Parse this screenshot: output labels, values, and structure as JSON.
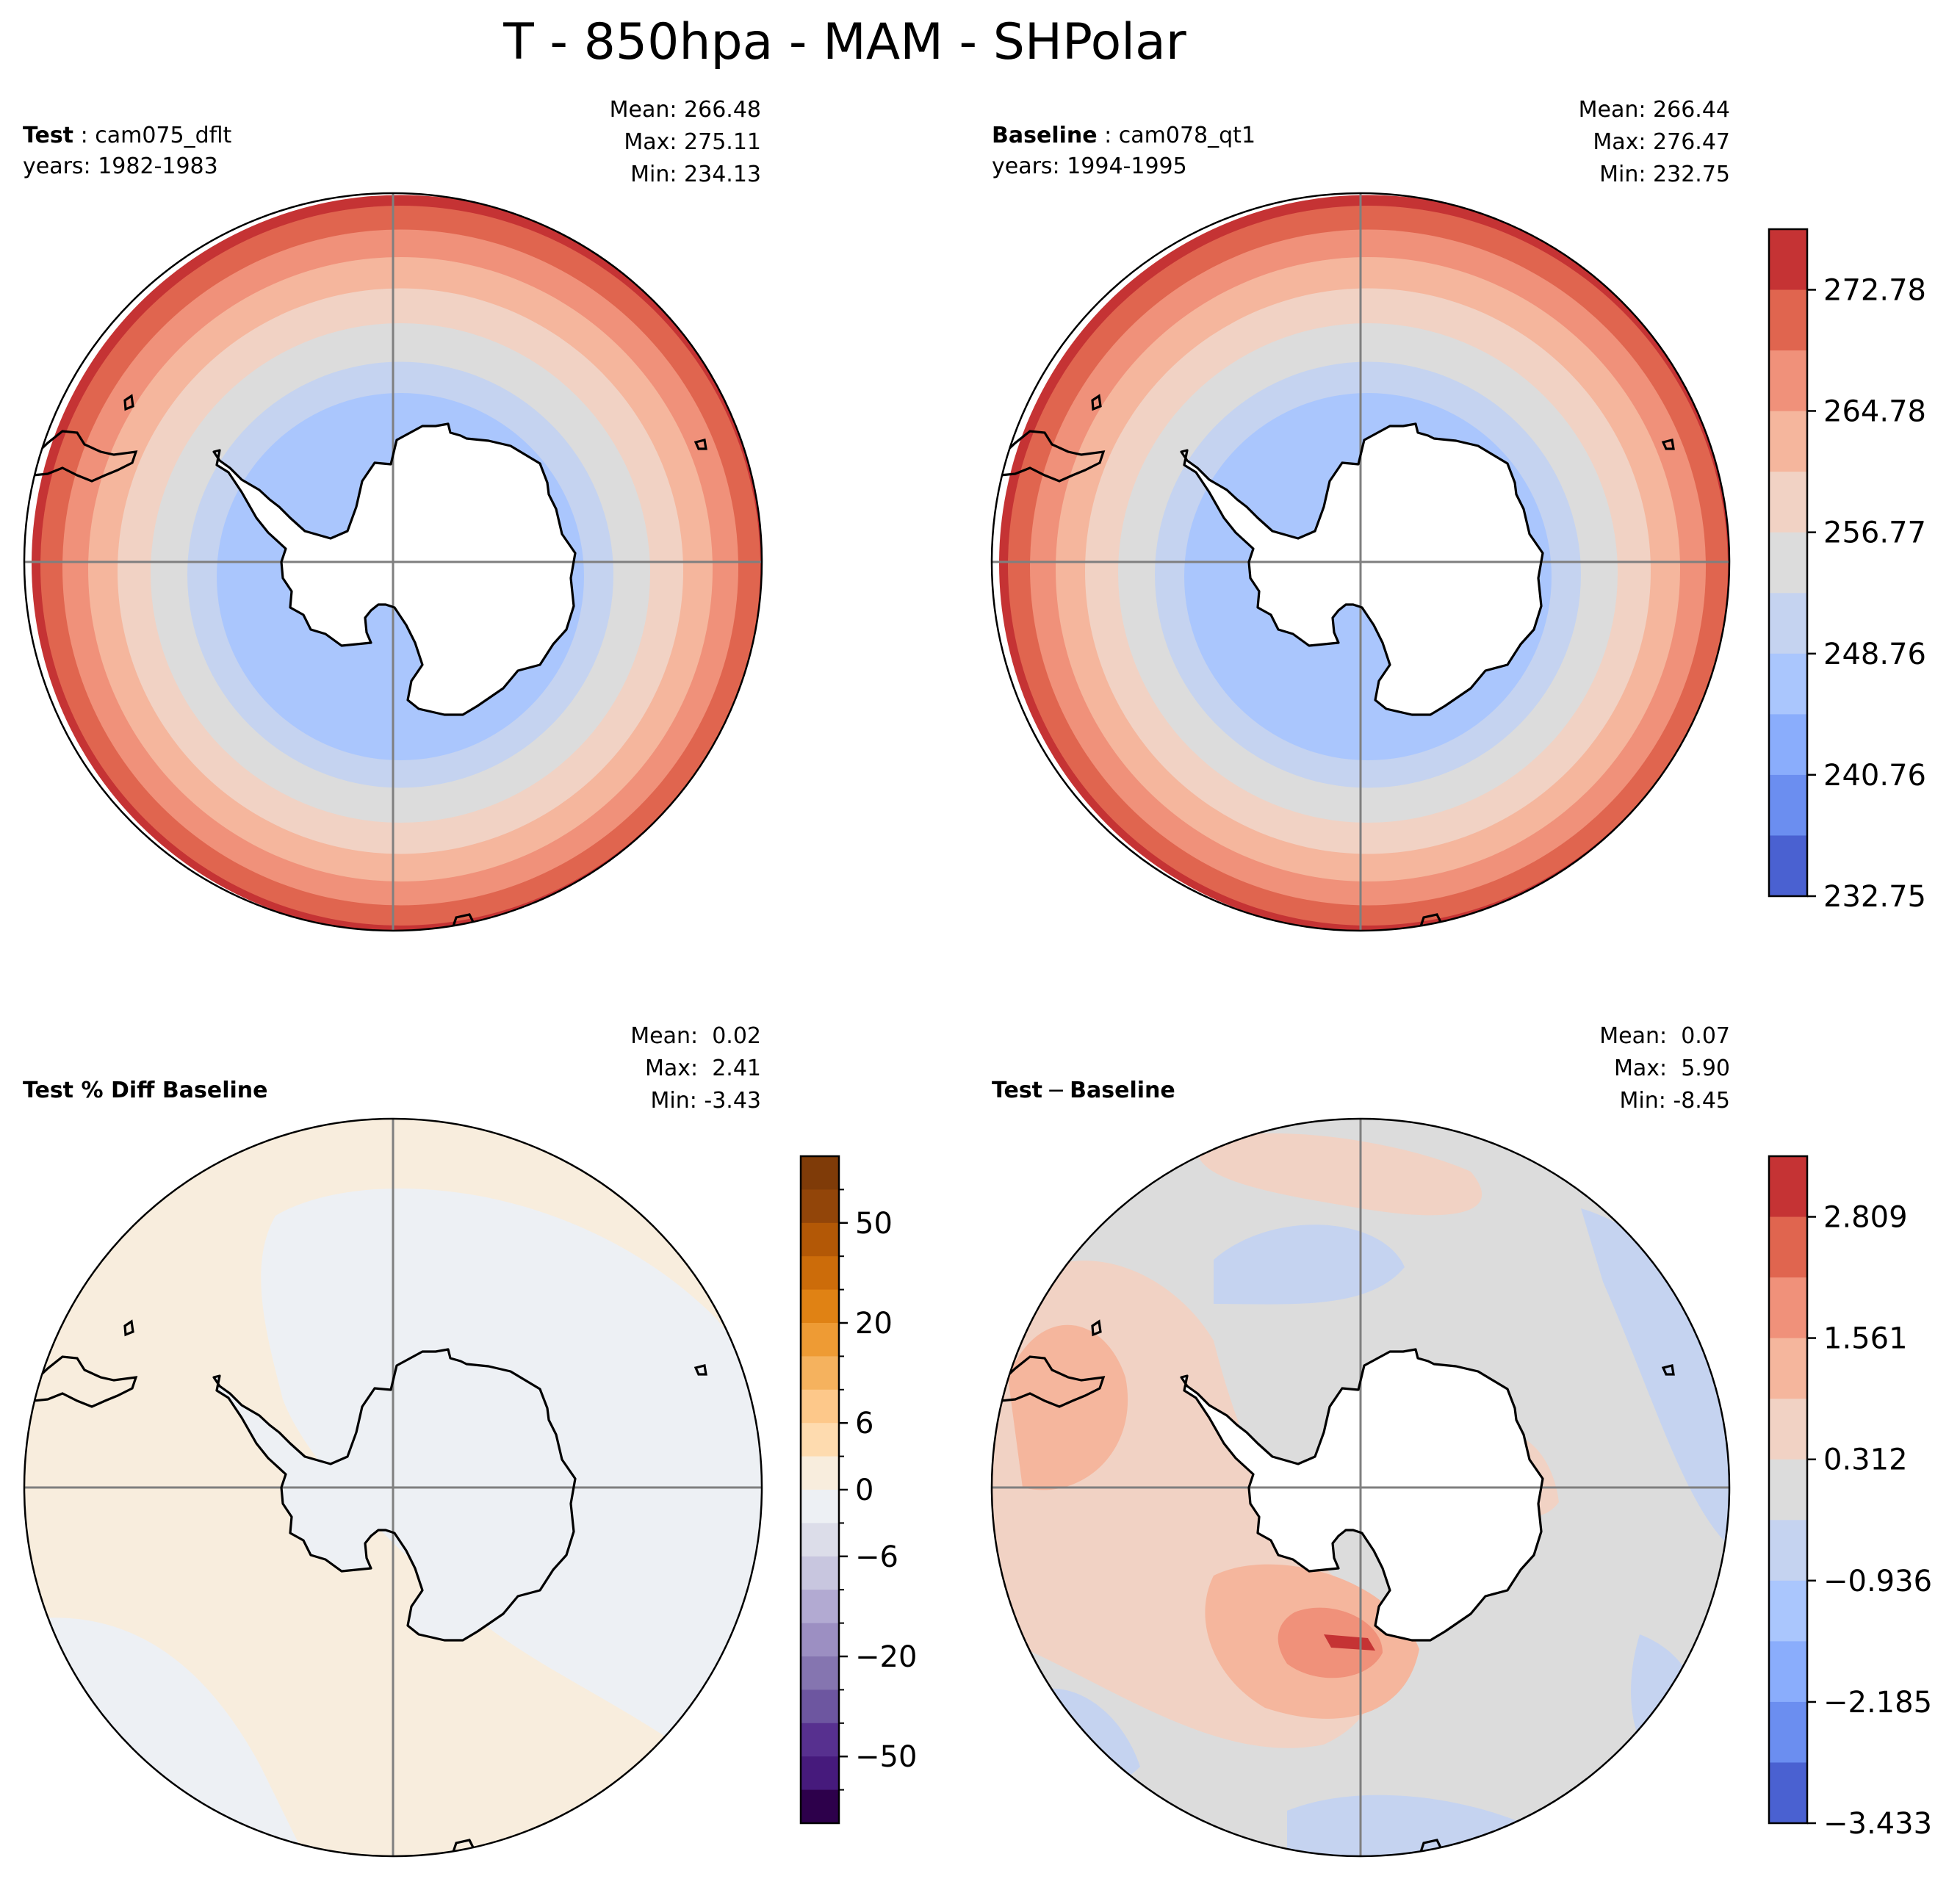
{
  "figure_title": "T - 850hpa - MAM - SHPolar",
  "panels": {
    "test": {
      "case_label": "Test",
      "case_name": "cam075_dflt",
      "years": "years: 1982-1983",
      "mean": "Mean: 266.48",
      "max": "Max: 275.11",
      "min": "Min: 234.13"
    },
    "baseline": {
      "case_label": "Baseline",
      "case_name": "cam078_qt1",
      "years": "years: 1994-1995",
      "mean": "Mean: 266.44",
      "max": "Max: 276.47",
      "min": "Min: 232.75"
    },
    "pct_diff": {
      "title": "Test % Diff Baseline",
      "mean": "Mean:  0.02",
      "max": "Max:  2.41",
      "min": "Min: -3.43"
    },
    "diff": {
      "title_a": "Test",
      "title_sep": "−",
      "title_b": "Baseline",
      "mean": "Mean:  0.07",
      "max": "Max:  5.90",
      "min": "Min: -8.45"
    }
  },
  "chart_data": [
    {
      "type": "heatmap",
      "projection": "south-polar-stereographic",
      "panel": "test",
      "variable": "T",
      "level": "850hpa",
      "season": "MAM",
      "ring_levels_from_pole": [
        248.76,
        252.76,
        256.77,
        260.77,
        264.78,
        268.78,
        272.78,
        274.2
      ],
      "colorbar_shared_with": "baseline"
    },
    {
      "type": "heatmap",
      "projection": "south-polar-stereographic",
      "panel": "baseline",
      "variable": "T",
      "level": "850hpa",
      "season": "MAM",
      "ring_levels_from_pole": [
        248.76,
        252.76,
        256.77,
        260.77,
        264.78,
        268.78,
        272.78,
        275.0
      ],
      "colorbar": {
        "min": 232.75,
        "max": 276.78,
        "ticks": [
          "272.78",
          "264.78",
          "256.77",
          "248.76",
          "240.76",
          "232.75"
        ],
        "tick_values": [
          272.78,
          264.78,
          256.77,
          248.76,
          240.76,
          232.75
        ],
        "colors_top_to_bottom": [
          "#c53334",
          "#e0654f",
          "#f0917a",
          "#f5b69d",
          "#f1d2c4",
          "#dcdcdc",
          "#c5d3f0",
          "#aac6fd",
          "#8aadfc",
          "#6b8ef0",
          "#4a61d1"
        ]
      }
    },
    {
      "type": "heatmap",
      "projection": "south-polar-stereographic",
      "panel": "pct_diff",
      "units": "%",
      "field_range": [
        -3.43,
        2.41
      ],
      "colorbar": {
        "ticks": [
          "50",
          "20",
          "6",
          "0",
          "−6",
          "−20",
          "−50"
        ],
        "tick_values": [
          50,
          20,
          6,
          0,
          -6,
          -20,
          -50
        ],
        "colors_top_to_bottom": [
          "#7f3b08",
          "#924509",
          "#b35806",
          "#cc6c0a",
          "#e08214",
          "#ee9b34",
          "#f5b25e",
          "#fdc88a",
          "#fedbaf",
          "#f8eddd",
          "#edf0f4",
          "#dcdde9",
          "#c8c6df",
          "#b2aad2",
          "#9c8fc2",
          "#8575b0",
          "#6d56a0",
          "#57308f",
          "#461a7c",
          "#2d004b"
        ]
      }
    },
    {
      "type": "heatmap",
      "projection": "south-polar-stereographic",
      "panel": "diff",
      "field_range": [
        -8.45,
        5.9
      ],
      "colorbar": {
        "min": -3.433,
        "max": 3.433,
        "ticks": [
          "2.809",
          "1.561",
          "0.312",
          "−0.936",
          "−2.185",
          "−3.433"
        ],
        "tick_values": [
          2.809,
          1.561,
          0.312,
          -0.936,
          -2.185,
          -3.433
        ],
        "colors_top_to_bottom": [
          "#c53334",
          "#e0654f",
          "#f0917a",
          "#f5b69d",
          "#f1d2c4",
          "#dcdcdc",
          "#c5d3f0",
          "#aac6fd",
          "#8aadfc",
          "#6b8ef0",
          "#4a61d1"
        ]
      }
    }
  ]
}
